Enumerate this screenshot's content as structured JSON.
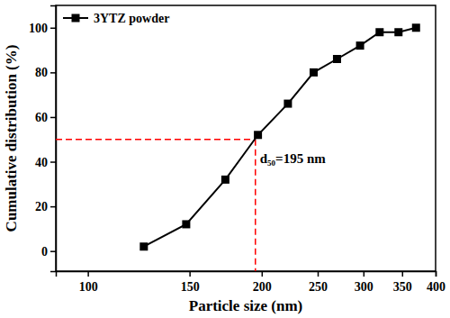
{
  "chart_data": {
    "type": "line",
    "x_label": "Particle size (nm)",
    "y_label": "Cumulative distribution (%)",
    "x": [
      125,
      148,
      173,
      197,
      222,
      246,
      270,
      296,
      320,
      345,
      370
    ],
    "series": [
      {
        "name": "3YTZ powder",
        "color": "#000000",
        "marker": "square",
        "line_style": "solid",
        "values": [
          2,
          12,
          32,
          52,
          66,
          80,
          86,
          92,
          98,
          98,
          100
        ]
      }
    ],
    "xlim": [
      88,
      400
    ],
    "ylim": [
      -9,
      110
    ],
    "xticks": [
      100,
      150,
      200,
      250,
      300,
      350,
      400
    ],
    "yticks": [
      0,
      20,
      40,
      60,
      80,
      100
    ],
    "log": "x",
    "legend": "upper left",
    "annotations": [
      {
        "x": 195,
        "y": 50,
        "text": "d₅₀=195 nm",
        "color": "#ff0000",
        "line_style": "dashed"
      }
    ]
  }
}
